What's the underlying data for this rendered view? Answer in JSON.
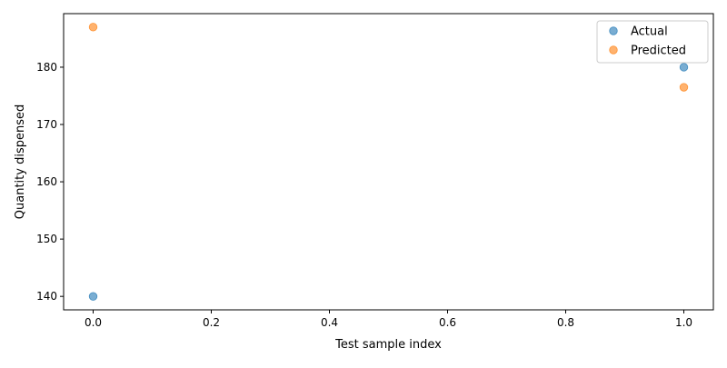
{
  "chart_data": {
    "type": "scatter",
    "title": "",
    "xlabel": "Test sample index",
    "ylabel": "Quantity dispensed",
    "xlim": [
      -0.05,
      1.05
    ],
    "ylim": [
      137.65,
      189.35
    ],
    "xticks": [
      0.0,
      0.2,
      0.4,
      0.6,
      0.8,
      1.0
    ],
    "xtick_labels": [
      "0.0",
      "0.2",
      "0.4",
      "0.6",
      "0.8",
      "1.0"
    ],
    "yticks": [
      140,
      150,
      160,
      170,
      180
    ],
    "ytick_labels": [
      "140",
      "150",
      "160",
      "170",
      "180"
    ],
    "grid": false,
    "legend": "top-right",
    "series": [
      {
        "name": "Actual",
        "color": "#1f77b4",
        "points": [
          [
            0,
            140
          ],
          [
            1,
            180
          ]
        ]
      },
      {
        "name": "Predicted",
        "color": "#ff7f0e",
        "points": [
          [
            0,
            187
          ],
          [
            1,
            176.5
          ]
        ]
      }
    ]
  }
}
